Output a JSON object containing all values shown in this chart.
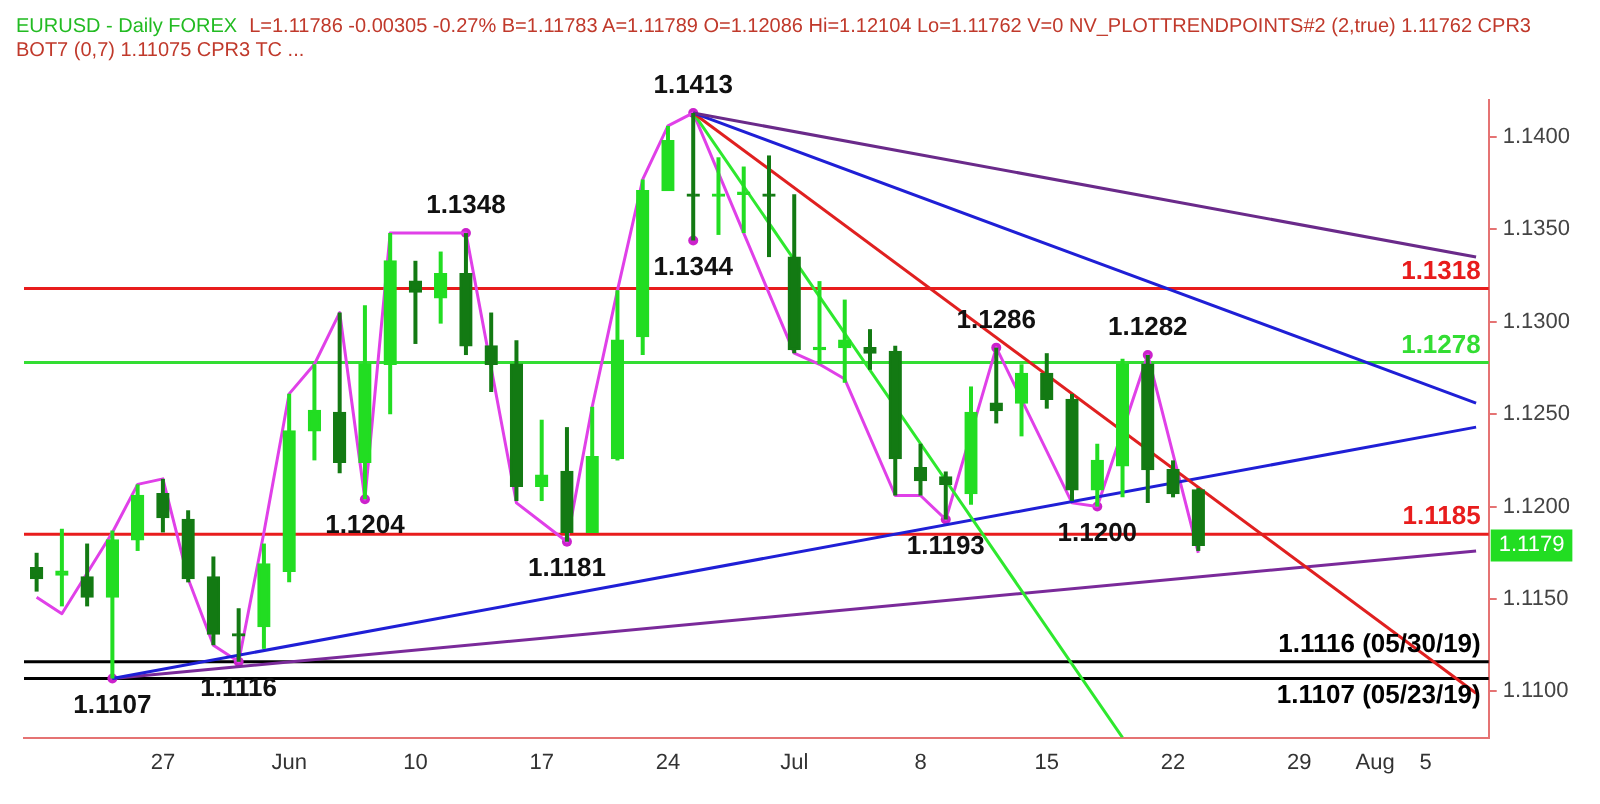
{
  "chart_data": {
    "type": "candlestick",
    "title": "EURUSD - Daily  FOREX",
    "subtitle": "L=1.11786  -0.00305  -0.27%  B=1.11783  A=1.11789  O=1.12086  Hi=1.12104  Lo=1.11762  V=0  NV_PLOTTRENDPOINTS#2 (2,true)  1.11762  CPR3 BOT7 (0,7)  1.11075  CPR3 TC ...",
    "categories": [
      null,
      null,
      null,
      null,
      null,
      "27",
      null,
      null,
      null,
      null,
      "Jun",
      null,
      null,
      null,
      null,
      "10",
      null,
      null,
      null,
      null,
      "17",
      null,
      null,
      null,
      null,
      "24",
      null,
      null,
      null,
      null,
      "Jul",
      null,
      null,
      null,
      null,
      "8",
      null,
      null,
      null,
      null,
      "15",
      null,
      null,
      null,
      null,
      "22",
      null,
      null,
      null,
      null,
      "29",
      null,
      null,
      "Aug",
      null,
      "5",
      null,
      null
    ],
    "color": "#22dd22",
    "colors": [
      "#137a13",
      "#22dd22",
      "#137a13",
      "#22dd22",
      "#22dd22",
      "#137a13",
      "#137a13",
      "#137a13",
      "#137a13",
      "#22dd22",
      "#22dd22",
      "#22dd22",
      "#137a13",
      "#22dd22",
      "#22dd22",
      "#137a13",
      "#22dd22",
      "#137a13",
      "#137a13",
      "#137a13",
      "#22dd22",
      "#137a13",
      "#22dd22",
      "#22dd22",
      "#22dd22",
      "#22dd22",
      "#137a13",
      "#22dd22",
      "#22dd22",
      "#137a13",
      "#137a13",
      "#22dd22",
      "#22dd22",
      "#137a13",
      "#137a13",
      "#137a13",
      "#137a13",
      "#22dd22",
      "#137a13",
      "#22dd22",
      "#137a13",
      "#137a13",
      "#22dd22",
      "#22dd22",
      "#137a13",
      "#137a13",
      "#137a13",
      null,
      null,
      null,
      null,
      null,
      null,
      null,
      null,
      null,
      null,
      null
    ],
    "ohlc": [
      [
        1.1167,
        1.1175,
        1.1154,
        1.1161
      ],
      [
        1.1163,
        1.1188,
        1.1146,
        1.1165
      ],
      [
        1.1162,
        1.118,
        1.1146,
        1.1151
      ],
      [
        1.1151,
        1.1187,
        1.1107,
        1.1182
      ],
      [
        1.1182,
        1.1212,
        1.1176,
        1.1206
      ],
      [
        1.1207,
        1.1215,
        1.1186,
        1.1194
      ],
      [
        1.1193,
        1.1198,
        1.1159,
        1.1161
      ],
      [
        1.1162,
        1.1173,
        1.1125,
        1.1131
      ],
      [
        1.1131,
        1.1145,
        1.1116,
        1.113
      ],
      [
        1.1135,
        1.118,
        1.1123,
        1.1169
      ],
      [
        1.1165,
        1.1261,
        1.1159,
        1.1241
      ],
      [
        1.1241,
        1.1277,
        1.1225,
        1.1252
      ],
      [
        1.1251,
        1.1305,
        1.1218,
        1.1224
      ],
      [
        1.1224,
        1.1309,
        1.1204,
        1.1277
      ],
      [
        1.1277,
        1.1348,
        1.125,
        1.1333
      ],
      [
        1.1322,
        1.1333,
        1.1288,
        1.1316
      ],
      [
        1.1313,
        1.1338,
        1.1299,
        1.1326
      ],
      [
        1.1326,
        1.1348,
        1.1282,
        1.1287
      ],
      [
        1.1287,
        1.1305,
        1.1262,
        1.1277
      ],
      [
        1.1277,
        1.129,
        1.1203,
        1.1211
      ],
      [
        1.1211,
        1.1247,
        1.1203,
        1.1217
      ],
      [
        1.1219,
        1.1243,
        1.1181,
        1.1186
      ],
      [
        1.1186,
        1.1254,
        1.1186,
        1.1227
      ],
      [
        1.1226,
        1.1317,
        1.1225,
        1.129
      ],
      [
        1.1292,
        1.1377,
        1.1282,
        1.1371
      ],
      [
        1.1371,
        1.1406,
        1.1371,
        1.1398
      ],
      [
        1.1369,
        1.1413,
        1.1344,
        1.1368
      ],
      [
        1.1368,
        1.1389,
        1.1347,
        1.1368
      ],
      [
        1.1369,
        1.1384,
        1.1348,
        1.1369
      ],
      [
        1.1369,
        1.139,
        1.1335,
        1.1368
      ],
      [
        1.1335,
        1.1369,
        1.1283,
        1.1285
      ],
      [
        1.1285,
        1.1322,
        1.1277,
        1.1286
      ],
      [
        1.1286,
        1.1312,
        1.1267,
        1.129
      ],
      [
        1.1286,
        1.1296,
        1.1274,
        1.1283
      ],
      [
        1.1284,
        1.1287,
        1.1206,
        1.1226
      ],
      [
        1.1221,
        1.1234,
        1.1206,
        1.1214
      ],
      [
        1.1216,
        1.1219,
        1.1193,
        1.1212
      ],
      [
        1.1207,
        1.1265,
        1.1201,
        1.1251
      ],
      [
        1.1256,
        1.1286,
        1.1245,
        1.1252
      ],
      [
        1.1256,
        1.1277,
        1.1238,
        1.1272
      ],
      [
        1.1272,
        1.1283,
        1.1253,
        1.1258
      ],
      [
        1.1258,
        1.1261,
        1.1203,
        1.1209
      ],
      [
        1.1209,
        1.1234,
        1.12,
        1.1225
      ],
      [
        1.1222,
        1.128,
        1.1205,
        1.1277
      ],
      [
        1.1277,
        1.1282,
        1.1202,
        1.122
      ],
      [
        1.122,
        1.1225,
        1.1205,
        1.1207
      ],
      [
        1.1209,
        1.121,
        1.1176,
        1.1179
      ],
      null,
      null,
      null,
      null,
      null,
      null,
      null,
      null,
      null,
      null,
      null
    ],
    "series": [
      {
        "type": "line",
        "color": "#6a2a8a",
        "values": [
          null,
          null,
          null,
          null,
          null,
          null,
          null,
          null,
          null,
          null,
          null,
          null,
          null,
          null,
          null,
          null,
          null,
          null,
          null,
          null,
          null,
          null,
          null,
          null,
          null,
          null,
          1.1413,
          null,
          null,
          null,
          null,
          null,
          null,
          null,
          null,
          null,
          null,
          null,
          null,
          null,
          null,
          null,
          null,
          null,
          null,
          null,
          null,
          null,
          null,
          null,
          null,
          null,
          null,
          null,
          null,
          null,
          null,
          1.1335
        ]
      },
      {
        "type": "line",
        "color": "#1f1fd6",
        "values": [
          null,
          null,
          null,
          null,
          null,
          null,
          null,
          null,
          null,
          null,
          null,
          null,
          null,
          null,
          null,
          null,
          null,
          null,
          null,
          null,
          null,
          null,
          null,
          null,
          null,
          null,
          1.1413,
          null,
          null,
          null,
          null,
          null,
          null,
          null,
          null,
          null,
          null,
          null,
          null,
          null,
          null,
          null,
          null,
          null,
          null,
          null,
          null,
          null,
          null,
          null,
          null,
          null,
          null,
          null,
          null,
          null,
          null,
          1.1256
        ]
      },
      {
        "type": "line",
        "color": "#e02020",
        "values": [
          null,
          null,
          null,
          null,
          null,
          null,
          null,
          null,
          null,
          null,
          null,
          null,
          null,
          null,
          null,
          null,
          null,
          null,
          null,
          null,
          null,
          null,
          null,
          null,
          null,
          null,
          1.1413,
          null,
          null,
          null,
          null,
          null,
          null,
          null,
          null,
          null,
          null,
          null,
          null,
          null,
          null,
          null,
          null,
          null,
          null,
          null,
          null,
          null,
          null,
          null,
          null,
          null,
          null,
          null,
          null,
          null,
          null,
          1.1099
        ]
      },
      {
        "type": "line",
        "color": "#2ee82e",
        "values": [
          null,
          null,
          null,
          null,
          null,
          null,
          null,
          null,
          null,
          null,
          null,
          null,
          null,
          null,
          null,
          null,
          null,
          null,
          null,
          null,
          null,
          null,
          null,
          null,
          null,
          null,
          1.1413,
          null,
          null,
          null,
          null,
          null,
          null,
          null,
          null,
          null,
          null,
          null,
          null,
          null,
          null,
          null,
          null,
          1.1075,
          null,
          null,
          null,
          null,
          null,
          null,
          null,
          null,
          null,
          null,
          null,
          null,
          null,
          null
        ]
      },
      {
        "type": "line",
        "color": "#1f1fd6",
        "values": [
          null,
          null,
          null,
          1.1107,
          null,
          null,
          null,
          null,
          null,
          null,
          null,
          null,
          null,
          null,
          null,
          null,
          null,
          null,
          null,
          null,
          null,
          null,
          null,
          null,
          null,
          null,
          null,
          null,
          null,
          null,
          null,
          null,
          null,
          null,
          null,
          null,
          null,
          null,
          null,
          null,
          null,
          null,
          null,
          null,
          null,
          null,
          null,
          null,
          null,
          null,
          null,
          null,
          null,
          null,
          null,
          null,
          null,
          1.1243
        ]
      },
      {
        "type": "line",
        "color": "#7a2a9a",
        "values": [
          null,
          null,
          null,
          1.1107,
          null,
          null,
          null,
          null,
          null,
          null,
          null,
          null,
          null,
          null,
          null,
          null,
          null,
          null,
          null,
          null,
          null,
          null,
          null,
          null,
          null,
          null,
          null,
          null,
          null,
          null,
          null,
          null,
          null,
          null,
          null,
          null,
          null,
          null,
          null,
          null,
          null,
          null,
          null,
          null,
          null,
          null,
          null,
          null,
          null,
          null,
          null,
          null,
          null,
          null,
          null,
          null,
          null,
          1.1176
        ]
      },
      {
        "type": "line",
        "color": "#e040e8",
        "values": [
          1.1151,
          1.1142,
          null,
          1.1186,
          1.1212,
          1.1215,
          1.1161,
          1.1125,
          1.1116,
          1.1186,
          1.1261,
          1.1277,
          1.1305,
          1.1204,
          1.1348,
          null,
          null,
          1.1348,
          null,
          1.1202,
          null,
          1.1181,
          1.1254,
          1.1317,
          1.1377,
          1.1406,
          1.1413,
          null,
          1.1348,
          null,
          1.1283,
          1.1277,
          1.1269,
          null,
          1.1206,
          1.1206,
          1.1193,
          null,
          1.1286,
          null,
          null,
          1.1202,
          1.12,
          null,
          1.1282,
          null,
          1.1175,
          null,
          null,
          null,
          null,
          null,
          null,
          null,
          null,
          null,
          null,
          null
        ]
      },
      {
        "type": "scatter",
        "color": "#cc22cc",
        "marker": "circle",
        "values": [
          null,
          null,
          null,
          null,
          null,
          null,
          null,
          null,
          null,
          null,
          null,
          null,
          null,
          null,
          null,
          null,
          null,
          1.1348,
          null,
          null,
          null,
          null,
          null,
          null,
          null,
          null,
          1.1413,
          null,
          null,
          null,
          null,
          null,
          null,
          null,
          null,
          null,
          null,
          null,
          1.1286,
          null,
          null,
          null,
          null,
          null,
          1.1282,
          null,
          null,
          null,
          null,
          null,
          null,
          null,
          null,
          null,
          null,
          null,
          null,
          null
        ],
        "value_labels": [
          null,
          null,
          null,
          null,
          null,
          null,
          null,
          null,
          null,
          null,
          null,
          null,
          null,
          null,
          null,
          null,
          null,
          "1.1348",
          null,
          null,
          null,
          null,
          null,
          null,
          null,
          null,
          "1.1413",
          null,
          null,
          null,
          null,
          null,
          null,
          null,
          null,
          null,
          null,
          null,
          "1.1286",
          null,
          null,
          null,
          null,
          null,
          "1.1282",
          null,
          null,
          null,
          null,
          null,
          null,
          null,
          null,
          null,
          null,
          null,
          null,
          null
        ]
      },
      {
        "type": "scatter",
        "color": "#cc22cc",
        "marker": "circle",
        "values": [
          null,
          null,
          null,
          1.1107,
          null,
          null,
          null,
          null,
          1.1116,
          null,
          null,
          null,
          null,
          1.1204,
          null,
          null,
          null,
          null,
          null,
          null,
          null,
          1.1181,
          null,
          null,
          null,
          null,
          1.1344,
          null,
          null,
          null,
          null,
          null,
          null,
          null,
          null,
          null,
          1.1193,
          null,
          null,
          null,
          null,
          null,
          1.12,
          null,
          null,
          null,
          null,
          null,
          null,
          null,
          null,
          null,
          null,
          null,
          null,
          null,
          null,
          null
        ],
        "value_labels": [
          null,
          null,
          null,
          "1.1107",
          null,
          null,
          null,
          null,
          "1.1116",
          null,
          null,
          null,
          null,
          "1.1204",
          null,
          null,
          null,
          null,
          null,
          null,
          null,
          "1.1181",
          null,
          null,
          null,
          null,
          "1.1344",
          null,
          null,
          null,
          null,
          null,
          null,
          null,
          null,
          null,
          "1.1193",
          null,
          null,
          null,
          null,
          null,
          "1.1200",
          null,
          null,
          null,
          null,
          null,
          null,
          null,
          null,
          null,
          null,
          null,
          null,
          null,
          null,
          null
        ]
      }
    ],
    "ylim": [
      1.1075,
      1.142
    ],
    "yticks": [
      {
        "value": 1.11,
        "label": "1.1100"
      },
      {
        "value": 1.115,
        "label": "1.1150"
      },
      {
        "value": 1.12,
        "label": "1.1200"
      },
      {
        "value": 1.125,
        "label": "1.1250"
      },
      {
        "value": 1.13,
        "label": "1.1300"
      },
      {
        "value": 1.135,
        "label": "1.1350"
      },
      {
        "value": 1.14,
        "label": "1.1400"
      }
    ],
    "ref_lines": [
      {
        "axis": "y",
        "value": 1.1318,
        "label": "1.1318",
        "color": "#e81c1c"
      },
      {
        "axis": "y",
        "value": 1.1278,
        "label": "1.1278",
        "color": "#33dd33"
      },
      {
        "axis": "y",
        "value": 1.1185,
        "label": "1.1185",
        "color": "#e81c1c"
      },
      {
        "axis": "y",
        "value": 1.1116,
        "label": "1.1116 (05/30/19)",
        "color": "#000000"
      },
      {
        "axis": "y",
        "value": 1.1107,
        "label": "1.1107 (05/23/19)",
        "color": "#000000"
      }
    ],
    "annotations": [
      {
        "text": "1.1179",
        "y": 1.1179
      }
    ],
    "grid": false,
    "legend": false
  }
}
